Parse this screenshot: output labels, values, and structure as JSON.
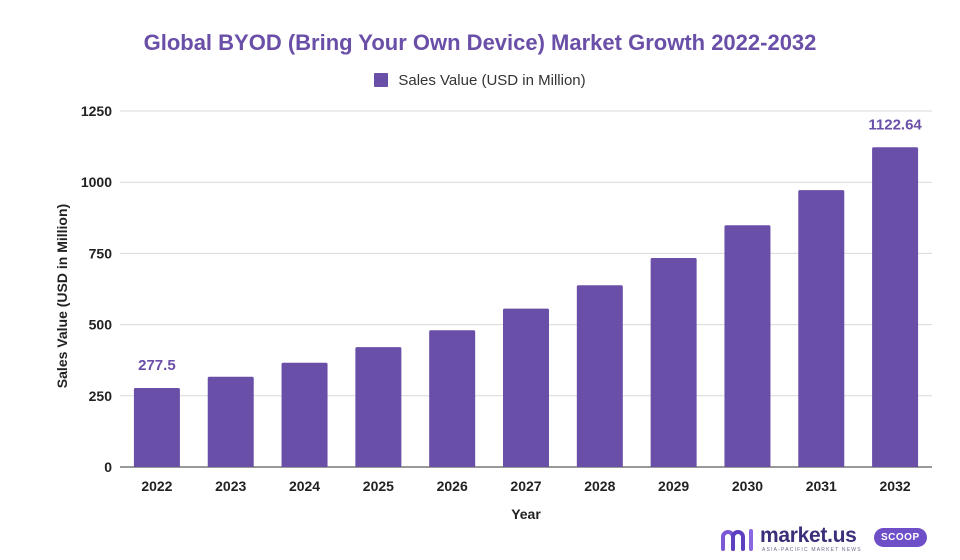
{
  "chart_data": {
    "type": "bar",
    "title": "Global BYOD (Bring Your Own Device) Market Growth 2022-2032",
    "xlabel": "Year",
    "ylabel": "Sales Value (USD in Million)",
    "categories": [
      "2022",
      "2023",
      "2024",
      "2025",
      "2026",
      "2027",
      "2028",
      "2029",
      "2030",
      "2031",
      "2032"
    ],
    "series": [
      {
        "name": "Sales Value (USD in Million)",
        "values": [
          277.5,
          317,
          366,
          421,
          480,
          556,
          638,
          734,
          849,
          972,
          1122.64
        ]
      }
    ],
    "data_labels": [
      {
        "index": 0,
        "text": "277.5"
      },
      {
        "index": 10,
        "text": "1122.64"
      }
    ],
    "ylim": [
      0,
      1250
    ],
    "yticks": [
      0,
      250,
      500,
      750,
      1000,
      1250
    ],
    "grid": true,
    "legend_position": "top-center",
    "colors": {
      "bar": "#6a4fa8",
      "title": "#6a4fa8",
      "grid": "#d9d9d9"
    }
  },
  "brand": {
    "name": "market.us",
    "badge": "SCOOP",
    "tagline": "ASIA-PACIFIC MARKET NEWS"
  }
}
